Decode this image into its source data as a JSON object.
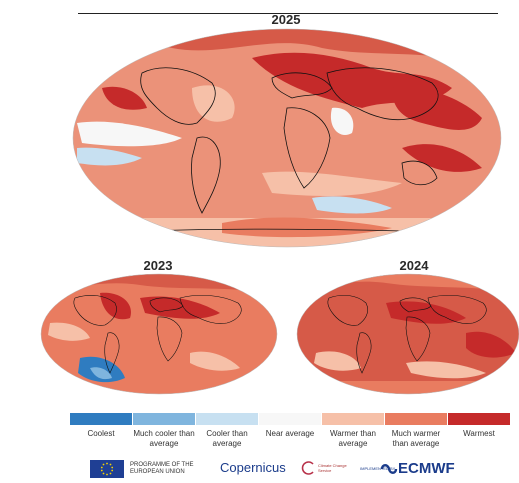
{
  "maps": [
    {
      "id": "map-2025",
      "title": "2025"
    },
    {
      "id": "map-2023",
      "title": "2023"
    },
    {
      "id": "map-2024",
      "title": "2024"
    }
  ],
  "legend": {
    "items": [
      {
        "label": "Coolest",
        "color": "#2f7cc0"
      },
      {
        "label": "Much cooler than average",
        "color": "#7fb5de"
      },
      {
        "label": "Cooler than average",
        "color": "#c7e0f1"
      },
      {
        "label": "Near average",
        "color": "#f7f7f7"
      },
      {
        "label": "Warmer than average",
        "color": "#f6c0a8"
      },
      {
        "label": "Much warmer than average",
        "color": "#e97c60"
      },
      {
        "label": "Warmest",
        "color": "#c52a2a"
      }
    ]
  },
  "logos": {
    "eu": "PROGRAMME OF THE EUROPEAN UNION",
    "copernicus": "Copernicus",
    "c3s": "Climate Change Service",
    "implemented": "IMPLEMENTED BY",
    "ecmwf": "ECMWF"
  }
}
